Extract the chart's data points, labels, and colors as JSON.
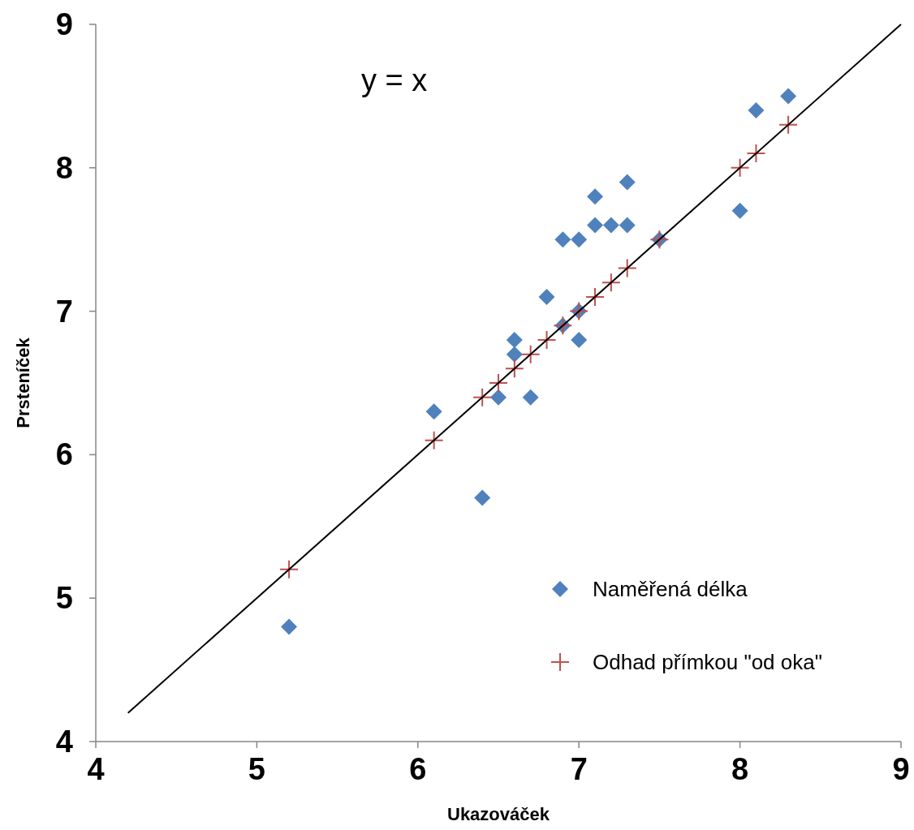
{
  "chart_data": {
    "type": "scatter",
    "xlabel": "Ukazováček",
    "ylabel": "Prsteníček",
    "xlim": [
      4,
      9
    ],
    "ylim": [
      4,
      9
    ],
    "xticks": [
      4,
      5,
      6,
      7,
      8,
      9
    ],
    "yticks": [
      4,
      5,
      6,
      7,
      8,
      9
    ],
    "grid": false,
    "legend": "bottom right",
    "annotations": [
      "y = x"
    ],
    "series": [
      {
        "name": "Naměřená délka",
        "marker": "diamond",
        "color": "#4f81bd",
        "x": [
          5.2,
          6.1,
          6.4,
          6.5,
          6.6,
          6.6,
          6.7,
          6.8,
          6.9,
          6.9,
          7.0,
          7.0,
          7.0,
          7.1,
          7.1,
          7.2,
          7.3,
          7.3,
          7.5,
          8.0,
          8.1,
          8.3
        ],
        "values": [
          4.8,
          6.3,
          5.7,
          6.4,
          6.8,
          6.7,
          6.4,
          7.1,
          7.5,
          6.9,
          7.5,
          7.0,
          6.8,
          7.8,
          7.6,
          7.6,
          7.9,
          7.6,
          7.5,
          7.7,
          8.4,
          8.5
        ]
      },
      {
        "name": "Odhad přímkou \"od oka\"",
        "marker": "cross",
        "color": "#c0504d",
        "x": [
          5.2,
          6.1,
          6.4,
          6.5,
          6.6,
          6.7,
          6.8,
          6.9,
          7.0,
          7.1,
          7.2,
          7.3,
          7.5,
          8.0,
          8.1,
          8.3
        ],
        "values": [
          5.2,
          6.1,
          6.4,
          6.5,
          6.6,
          6.7,
          6.8,
          6.9,
          7.0,
          7.1,
          7.2,
          7.3,
          7.5,
          8.0,
          8.1,
          8.3
        ]
      },
      {
        "type": "line",
        "marker": "none",
        "line_style": "solid",
        "color": "#000000",
        "x": [
          4.2,
          9
        ],
        "values": [
          4.2,
          9
        ]
      }
    ]
  }
}
